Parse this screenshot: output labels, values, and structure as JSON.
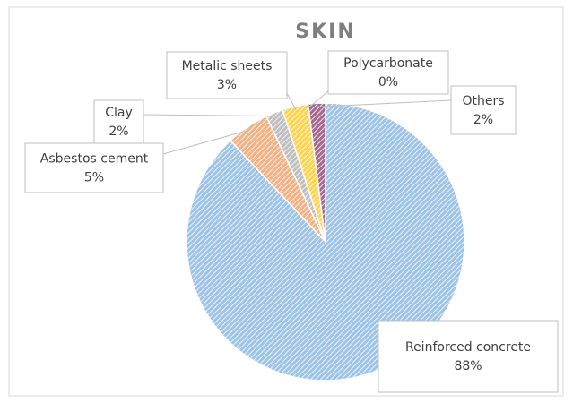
{
  "chart_data": {
    "type": "pie",
    "title": "SKIN",
    "categories": [
      "Reinforced concrete",
      "Asbestos cement",
      "Clay",
      "Metalic sheets",
      "Polycarbonate",
      "Others"
    ],
    "values": [
      88,
      5,
      2,
      3,
      0,
      2
    ],
    "value_labels": [
      "88%",
      "5%",
      "2%",
      "3%",
      "0%",
      "2%"
    ],
    "colors": [
      "#9dc3e6",
      "#f4b183",
      "#bfbfbf",
      "#ffd34d",
      "#d9d9d9",
      "#a5688f"
    ]
  }
}
